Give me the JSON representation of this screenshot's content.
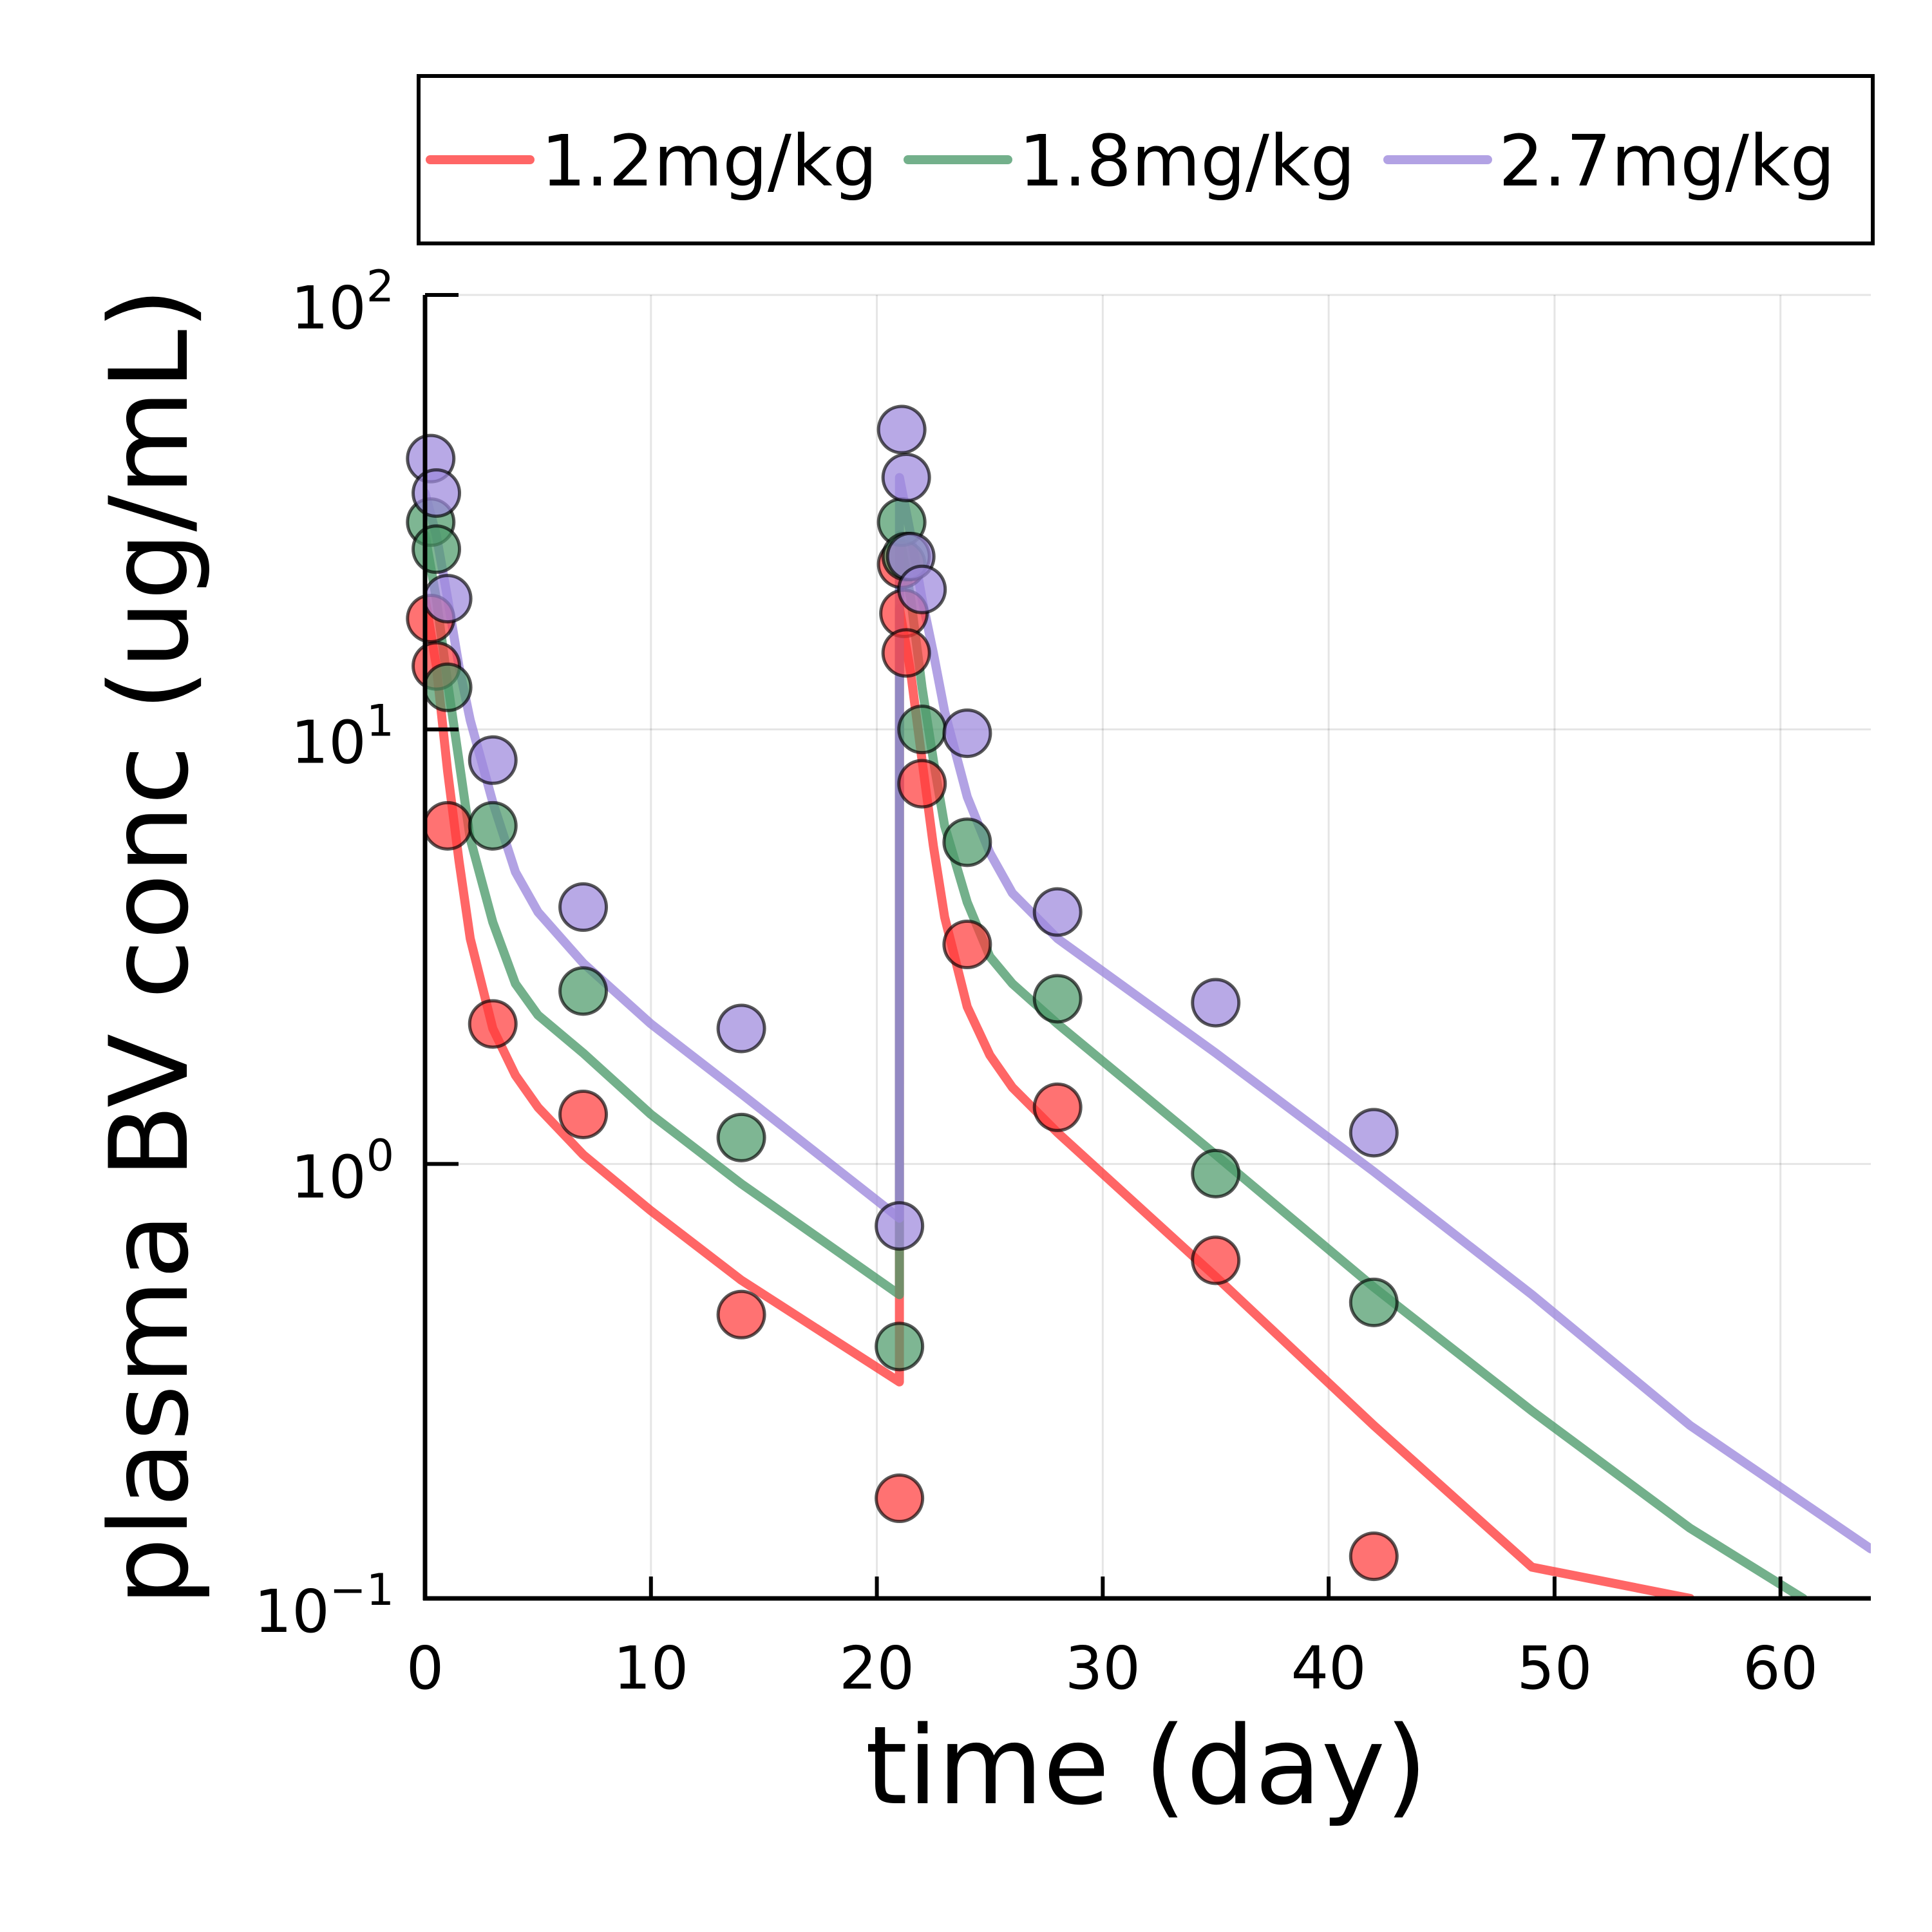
{
  "chart_data": {
    "type": "scatter",
    "xlabel": "time (day)",
    "ylabel": "plasma BV conc (ug/mL)",
    "xlim": [
      0,
      64
    ],
    "ylim": [
      0.1,
      100
    ],
    "yscale": "log",
    "xticks": [
      0,
      10,
      20,
      30,
      40,
      50,
      60
    ],
    "yticks": [
      {
        "value": 0.1,
        "base": "10",
        "exp": "−1"
      },
      {
        "value": 1,
        "base": "10",
        "exp": "0"
      },
      {
        "value": 10,
        "base": "10",
        "exp": "1"
      },
      {
        "value": 100,
        "base": "10",
        "exp": "2"
      }
    ],
    "grid": true,
    "legend_position": "top, outside plot",
    "series": [
      {
        "name": "1.2mg/kg",
        "color": "#ff3b3b",
        "fit": [
          [
            0.001,
            20
          ],
          [
            0.5,
            14
          ],
          [
            1,
            8
          ],
          [
            1.5,
            5
          ],
          [
            2,
            3.3
          ],
          [
            3,
            2.05
          ],
          [
            4,
            1.6
          ],
          [
            5,
            1.35
          ],
          [
            7,
            1.05
          ],
          [
            10,
            0.78
          ],
          [
            14,
            0.54
          ],
          [
            21,
            0.315
          ],
          [
            21.001,
            19
          ],
          [
            21.5,
            13.5
          ],
          [
            22,
            8.5
          ],
          [
            22.5,
            5.4
          ],
          [
            23,
            3.7
          ],
          [
            24,
            2.3
          ],
          [
            25,
            1.78
          ],
          [
            26,
            1.5
          ],
          [
            28,
            1.18
          ],
          [
            35,
            0.55
          ],
          [
            42,
            0.25
          ],
          [
            49,
            0.118
          ],
          [
            56,
            0.1
          ]
        ],
        "points": [
          [
            0.25,
            18
          ],
          [
            0.5,
            14
          ],
          [
            1,
            6
          ],
          [
            3,
            2.1
          ],
          [
            7,
            1.3
          ],
          [
            14,
            0.45
          ],
          [
            21,
            0.17
          ],
          [
            21.1,
            24
          ],
          [
            21.2,
            18.5
          ],
          [
            21.3,
            15
          ],
          [
            22,
            7.5
          ],
          [
            24,
            3.2
          ],
          [
            28,
            1.35
          ],
          [
            35,
            0.6
          ],
          [
            42,
            0.125
          ]
        ]
      },
      {
        "name": "1.8mg/kg",
        "color": "#4c9a6a",
        "fit": [
          [
            0.001,
            28
          ],
          [
            0.5,
            20
          ],
          [
            1,
            12.8
          ],
          [
            1.5,
            8.5
          ],
          [
            2,
            5.6
          ],
          [
            3,
            3.6
          ],
          [
            4,
            2.6
          ],
          [
            5,
            2.2
          ],
          [
            7,
            1.8
          ],
          [
            10,
            1.3
          ],
          [
            14,
            0.9
          ],
          [
            21,
            0.5
          ],
          [
            21.001,
            28
          ],
          [
            21.5,
            20
          ],
          [
            22,
            12.5
          ],
          [
            22.5,
            8.5
          ],
          [
            23,
            6
          ],
          [
            24,
            4
          ],
          [
            25,
            3
          ],
          [
            26,
            2.6
          ],
          [
            28,
            2.1
          ],
          [
            35,
            1.05
          ],
          [
            42,
            0.52
          ],
          [
            49,
            0.27
          ],
          [
            56,
            0.145
          ],
          [
            61,
            0.1
          ]
        ],
        "points": [
          [
            0.25,
            30
          ],
          [
            0.5,
            26
          ],
          [
            1,
            12.5
          ],
          [
            3,
            6
          ],
          [
            7,
            2.5
          ],
          [
            14,
            1.15
          ],
          [
            21,
            0.38
          ],
          [
            21.1,
            30
          ],
          [
            21.3,
            25
          ],
          [
            22,
            10
          ],
          [
            24,
            5.5
          ],
          [
            28,
            2.4
          ],
          [
            35,
            0.95
          ],
          [
            42,
            0.48
          ]
        ]
      },
      {
        "name": "2.7mg/kg",
        "color": "#9c88dc",
        "fit": [
          [
            0.001,
            35
          ],
          [
            0.5,
            28
          ],
          [
            1,
            20
          ],
          [
            1.5,
            14
          ],
          [
            2,
            10.5
          ],
          [
            3,
            6.8
          ],
          [
            4,
            4.7
          ],
          [
            5,
            3.8
          ],
          [
            7,
            2.9
          ],
          [
            10,
            2.1
          ],
          [
            14,
            1.45
          ],
          [
            21,
            0.75
          ],
          [
            21.001,
            38
          ],
          [
            21.5,
            28
          ],
          [
            22,
            20
          ],
          [
            22.5,
            15
          ],
          [
            23,
            11
          ],
          [
            24,
            7
          ],
          [
            25,
            5.2
          ],
          [
            26,
            4.2
          ],
          [
            28,
            3.3
          ],
          [
            35,
            1.8
          ],
          [
            42,
            0.96
          ],
          [
            49,
            0.5
          ],
          [
            56,
            0.25
          ],
          [
            64,
            0.13
          ]
        ],
        "points": [
          [
            0.25,
            42
          ],
          [
            0.5,
            35
          ],
          [
            1,
            20
          ],
          [
            3,
            8.5
          ],
          [
            7,
            3.9
          ],
          [
            14,
            2.05
          ],
          [
            21,
            0.72
          ],
          [
            21.1,
            49
          ],
          [
            21.3,
            38
          ],
          [
            21.5,
            25
          ],
          [
            22,
            21
          ],
          [
            24,
            9.8
          ],
          [
            28,
            3.8
          ],
          [
            35,
            2.35
          ],
          [
            42,
            1.18
          ]
        ]
      }
    ]
  }
}
